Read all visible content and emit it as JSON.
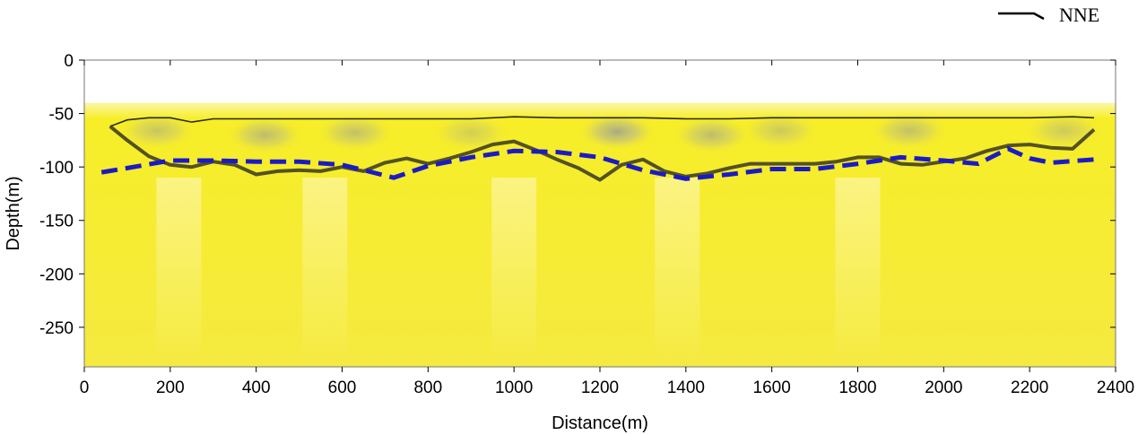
{
  "chart_data": {
    "type": "heatmap",
    "title": "",
    "xlabel": "Distance(m)",
    "ylabel": "Depth(m)",
    "xlim": [
      0,
      2400
    ],
    "ylim": [
      -287,
      0
    ],
    "x_ticks": [
      0,
      200,
      400,
      600,
      800,
      1000,
      1200,
      1400,
      1600,
      1800,
      2000,
      2200,
      2400
    ],
    "y_ticks": [
      0,
      -50,
      -100,
      -150,
      -200,
      -250
    ],
    "direction_label": "NNE",
    "colors": {
      "background_field": "#f7ee1e",
      "anomaly": "#9a9e8a",
      "boundary_line": "#1b1bc4",
      "contour": "#2a2a22"
    },
    "data_top_depth": -40,
    "interpreted_boundary": {
      "name": "interpreted interface (dashed blue)",
      "x": [
        40,
        100,
        200,
        300,
        400,
        500,
        600,
        650,
        700,
        720,
        800,
        900,
        1000,
        1100,
        1200,
        1300,
        1400,
        1500,
        1600,
        1700,
        1800,
        1900,
        2000,
        2080,
        2150,
        2200,
        2250,
        2350
      ],
      "y": [
        -105,
        -101,
        -94,
        -94,
        -95,
        -95,
        -98,
        -103,
        -108,
        -110,
        -99,
        -91,
        -85,
        -86,
        -91,
        -103,
        -111,
        -107,
        -102,
        -102,
        -97,
        -91,
        -94,
        -97,
        -83,
        -92,
        -96,
        -93
      ]
    },
    "upper_contour": {
      "name": "upper low-value contour",
      "x": [
        60,
        100,
        150,
        200,
        250,
        300,
        400,
        500,
        600,
        700,
        800,
        900,
        1000,
        1100,
        1200,
        1300,
        1400,
        1500,
        1600,
        1700,
        1800,
        1900,
        2000,
        2100,
        2200,
        2300,
        2350
      ],
      "y": [
        -62,
        -56,
        -54,
        -54,
        -58,
        -55,
        -55,
        -55,
        -55,
        -55,
        -55,
        -55,
        -53,
        -54,
        -54,
        -54,
        -55,
        -55,
        -54,
        -54,
        -54,
        -54,
        -54,
        -54,
        -54,
        -53,
        -54
      ]
    },
    "lower_contour": {
      "name": "lower low-value contour",
      "x": [
        60,
        100,
        150,
        200,
        250,
        300,
        350,
        400,
        450,
        500,
        550,
        600,
        650,
        700,
        750,
        800,
        850,
        900,
        950,
        1000,
        1050,
        1100,
        1150,
        1200,
        1250,
        1300,
        1350,
        1400,
        1450,
        1500,
        1550,
        1600,
        1650,
        1700,
        1750,
        1800,
        1850,
        1900,
        1950,
        2000,
        2050,
        2100,
        2150,
        2200,
        2250,
        2300,
        2350
      ],
      "y": [
        -62,
        -75,
        -90,
        -98,
        -100,
        -95,
        -98,
        -107,
        -104,
        -103,
        -104,
        -100,
        -104,
        -96,
        -92,
        -97,
        -92,
        -86,
        -79,
        -76,
        -84,
        -93,
        -101,
        -112,
        -98,
        -93,
        -104,
        -109,
        -106,
        -101,
        -97,
        -97,
        -97,
        -97,
        -95,
        -91,
        -91,
        -97,
        -98,
        -95,
        -92,
        -85,
        -80,
        -79,
        -82,
        -83,
        -65
      ]
    },
    "anomalies": [
      {
        "x": 170,
        "depth": -66,
        "strength": 0.45
      },
      {
        "x": 420,
        "depth": -70,
        "strength": 0.55
      },
      {
        "x": 630,
        "depth": -68,
        "strength": 0.5
      },
      {
        "x": 900,
        "depth": -68,
        "strength": 0.35
      },
      {
        "x": 1240,
        "depth": -67,
        "strength": 0.75
      },
      {
        "x": 1460,
        "depth": -70,
        "strength": 0.55
      },
      {
        "x": 1620,
        "depth": -66,
        "strength": 0.4
      },
      {
        "x": 1920,
        "depth": -66,
        "strength": 0.5
      },
      {
        "x": 2280,
        "depth": -66,
        "strength": 0.4
      }
    ]
  }
}
